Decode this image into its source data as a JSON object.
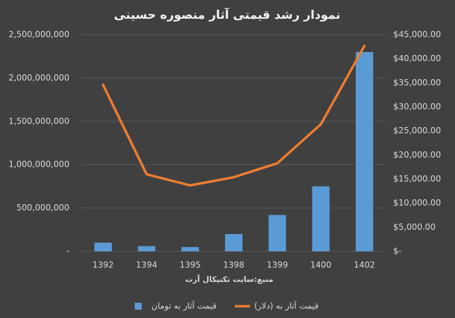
{
  "chart_data": {
    "type": "bar",
    "title": "نمودار رشد قیمتی آثار منصوره حسینی",
    "x_label": "منبع:سایت تکنیکال آرت",
    "categories": [
      "1392",
      "1394",
      "1395",
      "1398",
      "1399",
      "1400",
      "1402"
    ],
    "series": [
      {
        "name": "قیمت آثار  به تومان",
        "type": "bar",
        "color": "#5b9bd5",
        "values": [
          100000000,
          60000000,
          50000000,
          200000000,
          420000000,
          750000000,
          2300000000
        ]
      },
      {
        "name": "قیمت آثار  به (دلار)",
        "type": "line",
        "axis": "y2",
        "color": "#ed7d31",
        "values": [
          34600,
          16000,
          13700,
          15400,
          18300,
          26400,
          42700
        ]
      }
    ],
    "ylim": [
      0,
      2500000000
    ],
    "yticks": [
      {
        "value": 0,
        "label": "-"
      },
      {
        "value": 500000000,
        "label": "500,000,000"
      },
      {
        "value": 1000000000,
        "label": "1,000,000,000"
      },
      {
        "value": 1500000000,
        "label": "1,500,000,000"
      },
      {
        "value": 2000000000,
        "label": "2,000,000,000"
      },
      {
        "value": 2500000000,
        "label": "2,500,000,000"
      }
    ],
    "y2lim": [
      0,
      45000
    ],
    "y2ticks": [
      {
        "value": 0,
        "label": "$-"
      },
      {
        "value": 5000,
        "label": "$5,000.00"
      },
      {
        "value": 10000,
        "label": "$10,000.00"
      },
      {
        "value": 15000,
        "label": "$15,000.00"
      },
      {
        "value": 20000,
        "label": "$20,000.00"
      },
      {
        "value": 25000,
        "label": "$25,000.00"
      },
      {
        "value": 30000,
        "label": "$30,000.00"
      },
      {
        "value": 35000,
        "label": "$35,000.00"
      },
      {
        "value": 40000,
        "label": "$40,000.00"
      },
      {
        "value": 45000,
        "label": "$45,000.00"
      }
    ],
    "grid": true
  }
}
